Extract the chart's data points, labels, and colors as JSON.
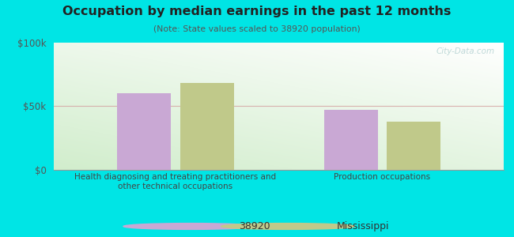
{
  "title": "Occupation by median earnings in the past 12 months",
  "subtitle": "(Note: State values scaled to 38920 population)",
  "categories": [
    "Health diagnosing and treating practitioners and\nother technical occupations",
    "Production occupations"
  ],
  "values_38920": [
    60000,
    47000
  ],
  "values_mississippi": [
    68000,
    38000
  ],
  "color_38920": "#c9a8d4",
  "color_mississippi": "#c0c98a",
  "ylim": [
    0,
    100000
  ],
  "yticks": [
    0,
    50000,
    100000
  ],
  "ytick_labels": [
    "$0",
    "$50k",
    "$100k"
  ],
  "bg_color_outer": "#00e5e5",
  "label_38920": "38920",
  "label_mississippi": "Mississippi",
  "bar_width": 0.12,
  "group_centers": [
    0.27,
    0.73
  ],
  "bar_gap": 0.02,
  "watermark": "City-Data.com"
}
